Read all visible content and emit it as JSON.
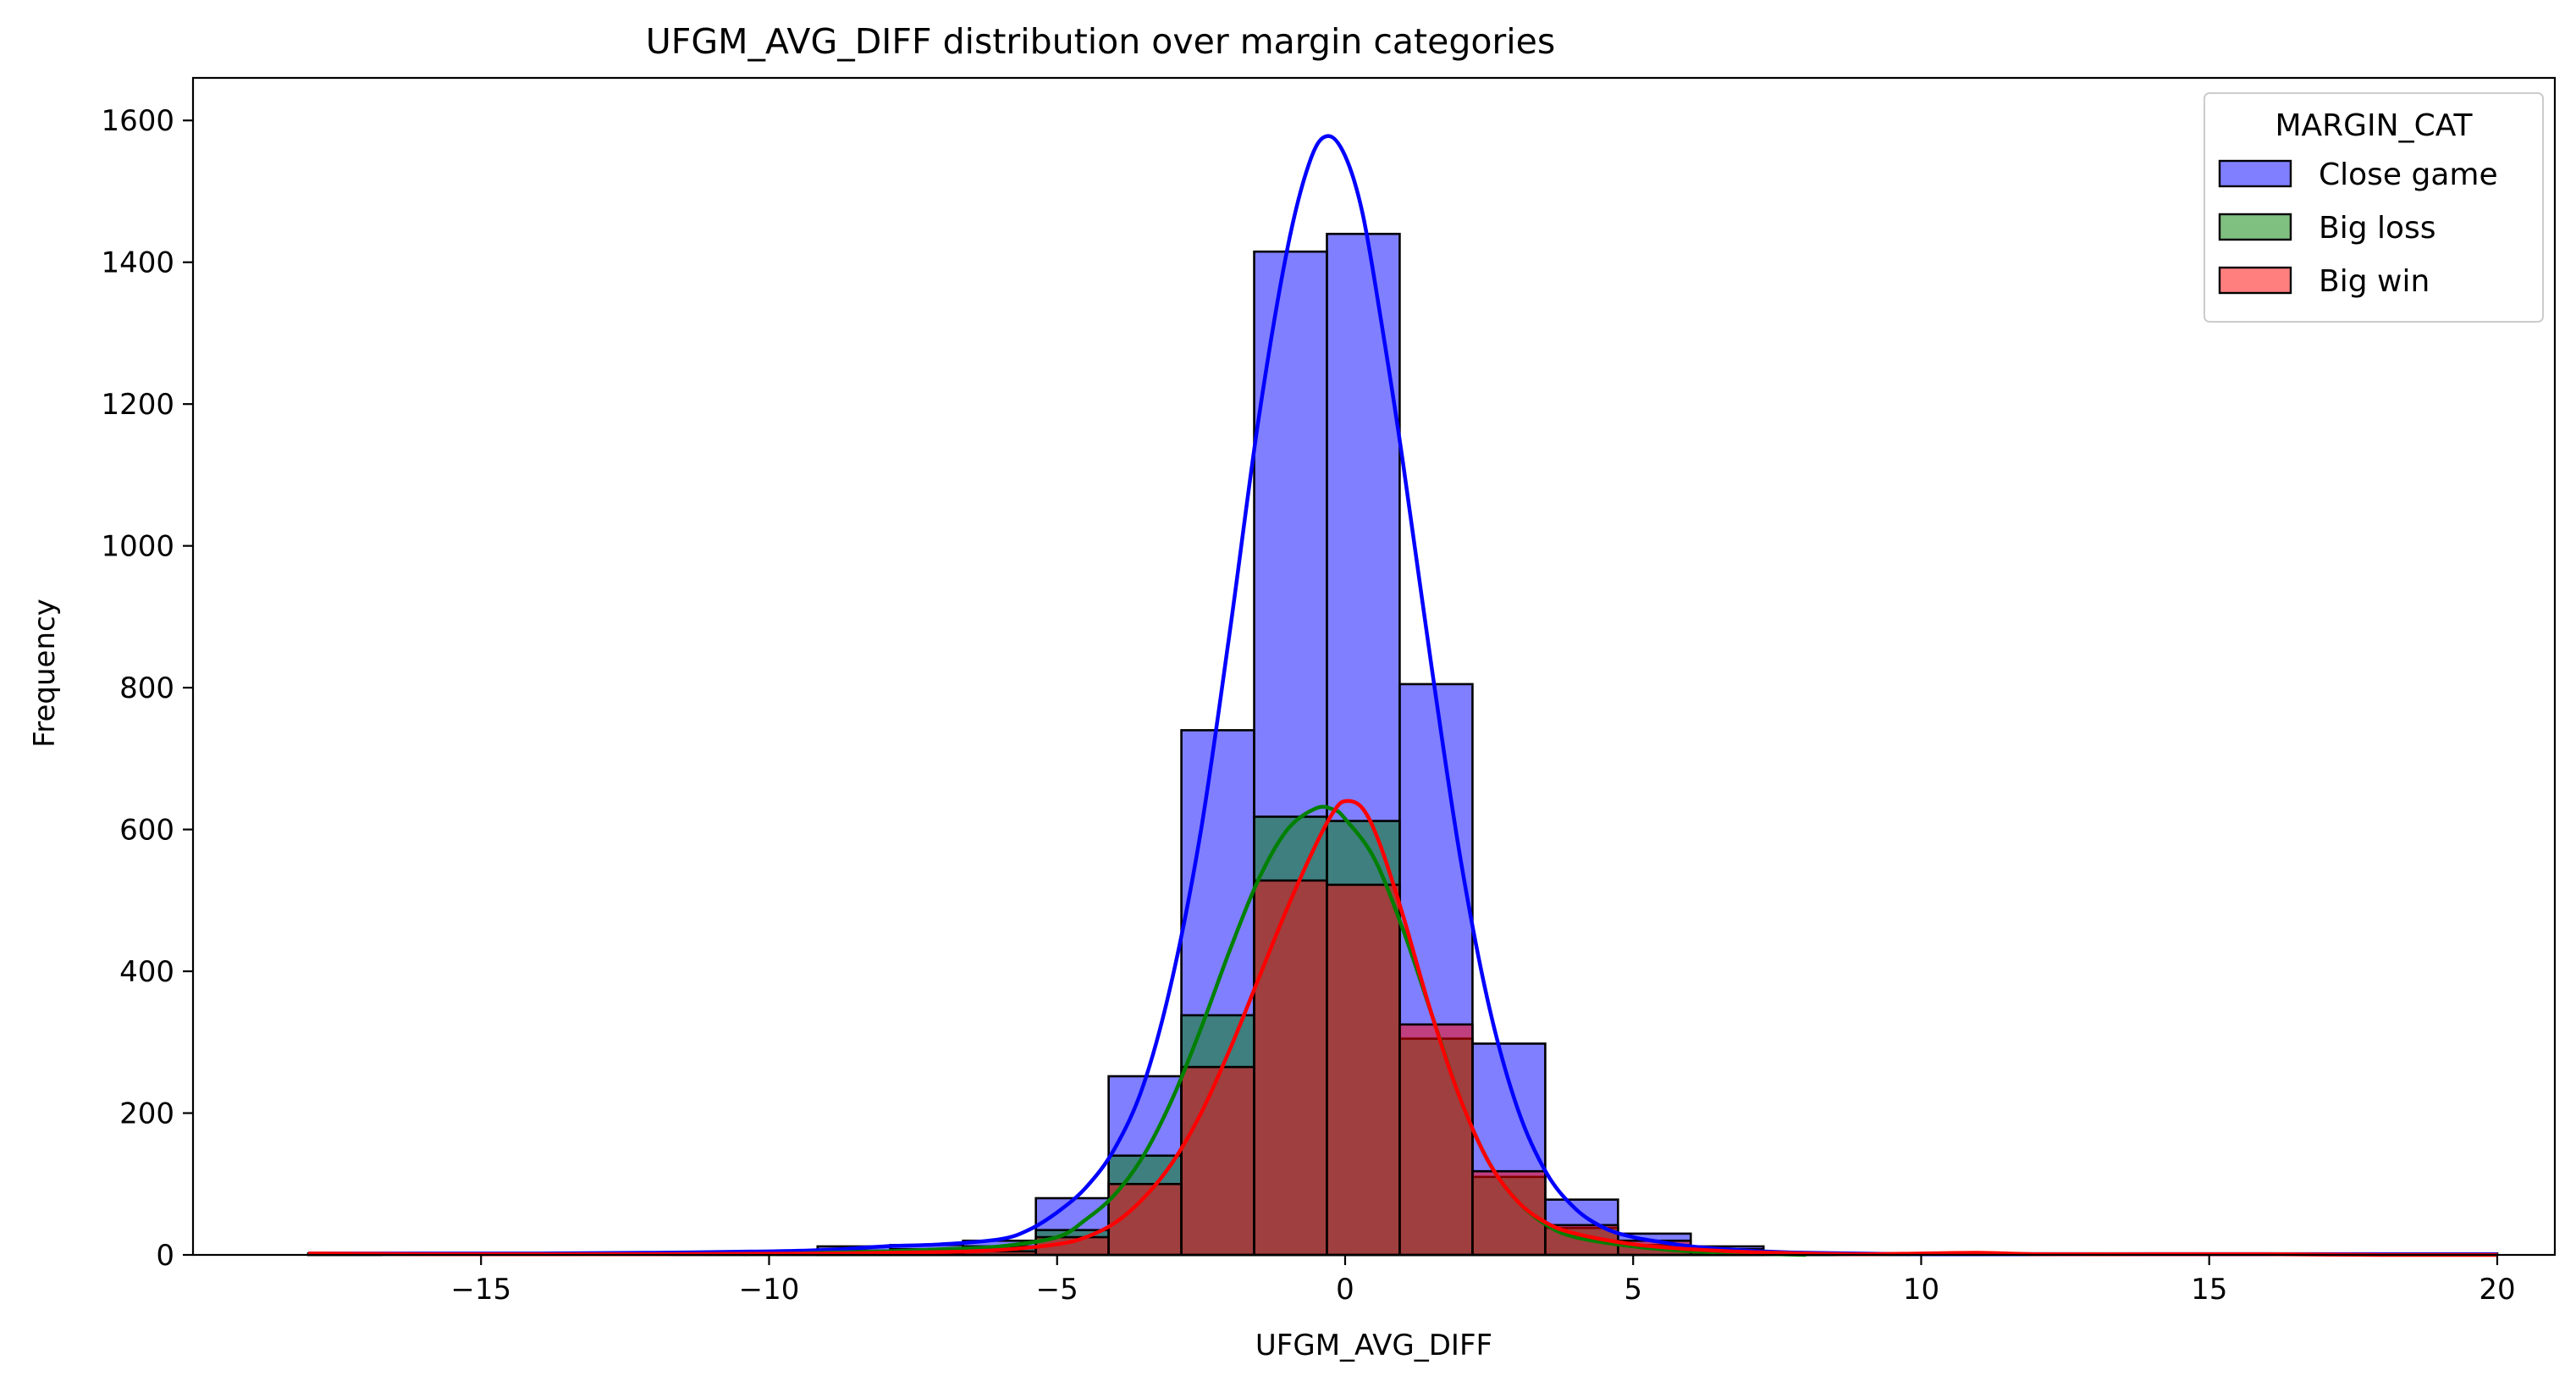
{
  "chart_data": {
    "type": "histogram",
    "title": "UFGM_AVG_DIFF distribution over margin categories",
    "xlabel": "UFGM_AVG_DIFF",
    "ylabel": "Frequency",
    "xlim": [
      -20,
      21
    ],
    "ylim": [
      0,
      1660
    ],
    "xticks": [
      -15,
      -10,
      -5,
      0,
      5,
      10,
      15,
      20
    ],
    "xtick_labels": [
      "−15",
      "−10",
      "−5",
      "0",
      "5",
      "10",
      "15",
      "20"
    ],
    "yticks": [
      0,
      200,
      400,
      600,
      800,
      1000,
      1200,
      1400,
      1600
    ],
    "grid": false,
    "legend": {
      "title": "MARGIN_CAT",
      "position": "top-right"
    },
    "bin_edges": [
      -18,
      -16.737,
      -15.474,
      -14.211,
      -12.947,
      -11.684,
      -10.421,
      -9.158,
      -7.895,
      -6.632,
      -5.368,
      -4.105,
      -2.842,
      -1.579,
      -0.316,
      0.947,
      2.211,
      3.474,
      4.737,
      6.0,
      7.263,
      8.526,
      9.789,
      11.053,
      12.316,
      13.579,
      14.842,
      16.105,
      17.368,
      18.632,
      20
    ],
    "series": [
      {
        "name": "Close game",
        "color": "#0000ff",
        "values": [
          1,
          0,
          1,
          0,
          1,
          2,
          4,
          12,
          14,
          20,
          80,
          252,
          740,
          1415,
          1440,
          805,
          298,
          78,
          30,
          12,
          3,
          1,
          0,
          0,
          0,
          0,
          0,
          0,
          0,
          2
        ],
        "kde": [
          [
            -18,
            2
          ],
          [
            -16,
            2
          ],
          [
            -14,
            2
          ],
          [
            -12,
            3
          ],
          [
            -10,
            5
          ],
          [
            -9,
            7
          ],
          [
            -8,
            12
          ],
          [
            -7,
            15
          ],
          [
            -6,
            22
          ],
          [
            -5.5,
            35
          ],
          [
            -5,
            60
          ],
          [
            -4.5,
            95
          ],
          [
            -4,
            150
          ],
          [
            -3.5,
            240
          ],
          [
            -3,
            390
          ],
          [
            -2.5,
            600
          ],
          [
            -2,
            880
          ],
          [
            -1.5,
            1180
          ],
          [
            -1,
            1420
          ],
          [
            -0.6,
            1545
          ],
          [
            -0.3,
            1578
          ],
          [
            0,
            1550
          ],
          [
            0.3,
            1470
          ],
          [
            0.6,
            1330
          ],
          [
            1,
            1120
          ],
          [
            1.5,
            830
          ],
          [
            2,
            560
          ],
          [
            2.5,
            350
          ],
          [
            3,
            205
          ],
          [
            3.5,
            115
          ],
          [
            4,
            65
          ],
          [
            4.5,
            38
          ],
          [
            5,
            25
          ],
          [
            5.5,
            18
          ],
          [
            6,
            12
          ],
          [
            7,
            6
          ],
          [
            8,
            3
          ],
          [
            10,
            1
          ],
          [
            12,
            1
          ],
          [
            15,
            1
          ],
          [
            18,
            1
          ],
          [
            20,
            1
          ]
        ]
      },
      {
        "name": "Big loss",
        "color": "#008000",
        "values": [
          0,
          0,
          0,
          0,
          0,
          1,
          2,
          6,
          8,
          12,
          35,
          140,
          338,
          618,
          612,
          305,
          110,
          38,
          14,
          4,
          1,
          0,
          0,
          0,
          0,
          0,
          0,
          0,
          0,
          0
        ],
        "kde": [
          [
            -10,
            1
          ],
          [
            -8,
            5
          ],
          [
            -7,
            8
          ],
          [
            -6,
            12
          ],
          [
            -5,
            25
          ],
          [
            -4.5,
            50
          ],
          [
            -4,
            85
          ],
          [
            -3.5,
            140
          ],
          [
            -3,
            220
          ],
          [
            -2.5,
            320
          ],
          [
            -2,
            430
          ],
          [
            -1.5,
            530
          ],
          [
            -1,
            600
          ],
          [
            -0.5,
            630
          ],
          [
            -0.2,
            628
          ],
          [
            0,
            615
          ],
          [
            0.5,
            560
          ],
          [
            1,
            460
          ],
          [
            1.5,
            340
          ],
          [
            2,
            220
          ],
          [
            2.5,
            130
          ],
          [
            3,
            75
          ],
          [
            3.5,
            42
          ],
          [
            4,
            25
          ],
          [
            5,
            12
          ],
          [
            6,
            5
          ],
          [
            7,
            2
          ],
          [
            8,
            0
          ]
        ]
      },
      {
        "name": "Big win",
        "color": "#ff0000",
        "values": [
          2,
          1,
          0,
          0,
          0,
          0,
          0,
          2,
          3,
          5,
          25,
          100,
          265,
          528,
          522,
          325,
          118,
          42,
          20,
          8,
          2,
          1,
          2,
          1,
          0,
          0,
          1,
          0,
          0,
          0
        ],
        "kde": [
          [
            -18,
            2
          ],
          [
            -16,
            1
          ],
          [
            -12,
            1
          ],
          [
            -9,
            2
          ],
          [
            -7,
            4
          ],
          [
            -6,
            7
          ],
          [
            -5,
            15
          ],
          [
            -4.5,
            25
          ],
          [
            -4,
            45
          ],
          [
            -3.5,
            80
          ],
          [
            -3,
            130
          ],
          [
            -2.5,
            200
          ],
          [
            -2,
            290
          ],
          [
            -1.5,
            390
          ],
          [
            -1,
            490
          ],
          [
            -0.5,
            580
          ],
          [
            -0.2,
            625
          ],
          [
            0,
            640
          ],
          [
            0.3,
            630
          ],
          [
            0.6,
            580
          ],
          [
            1,
            480
          ],
          [
            1.5,
            340
          ],
          [
            2,
            220
          ],
          [
            2.5,
            130
          ],
          [
            3,
            75
          ],
          [
            3.5,
            45
          ],
          [
            4,
            30
          ],
          [
            5,
            15
          ],
          [
            6,
            8
          ],
          [
            7,
            4
          ],
          [
            8,
            2
          ],
          [
            9,
            1
          ],
          [
            10,
            2
          ],
          [
            11,
            3
          ],
          [
            12,
            1
          ],
          [
            14,
            1
          ],
          [
            16,
            1
          ],
          [
            18,
            0
          ],
          [
            20,
            0
          ]
        ]
      }
    ]
  }
}
